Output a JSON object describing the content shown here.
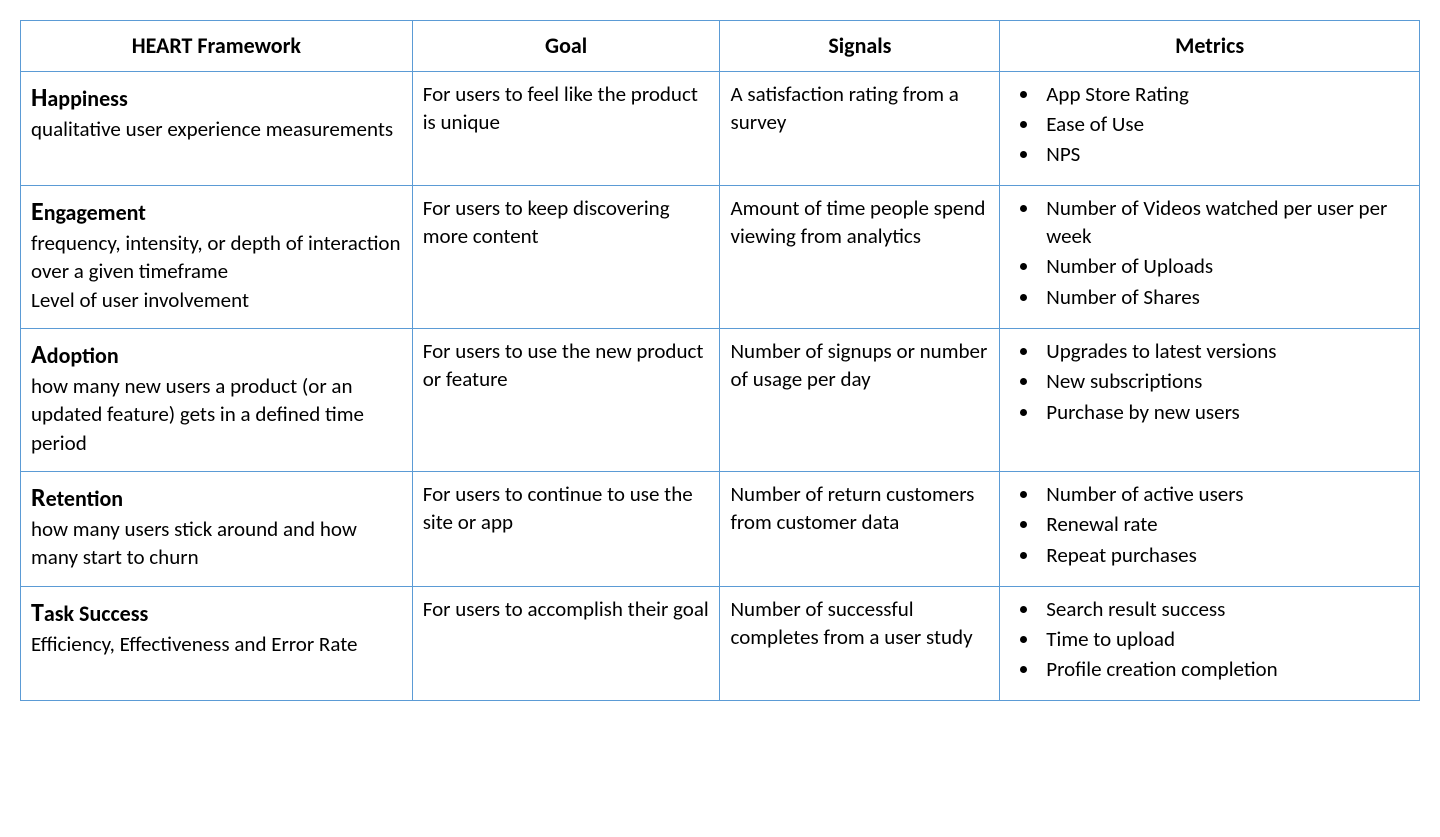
{
  "table": {
    "border_color": "#5b9bd5",
    "background_color": "#ffffff",
    "text_color": "#000000",
    "columns": [
      {
        "label": "HEART Framework",
        "width_pct": 28
      },
      {
        "label": "Goal",
        "width_pct": 22
      },
      {
        "label": "Signals",
        "width_pct": 20
      },
      {
        "label": "Metrics",
        "width_pct": 30
      }
    ],
    "rows": [
      {
        "heart_first": "H",
        "heart_rest": "appiness",
        "heart_desc_lines": [
          "qualitative user experience measurements"
        ],
        "goal": "For users to feel like the product is unique",
        "signals": "A satisfaction rating from a survey",
        "metrics": [
          "App Store Rating",
          "Ease of Use",
          "NPS"
        ]
      },
      {
        "heart_first": "E",
        "heart_rest": "ngagement",
        "heart_desc_lines": [
          "frequency, intensity, or depth of interaction over a given timeframe",
          "Level of user involvement"
        ],
        "goal": "For users to keep discovering more content",
        "signals": "Amount of time people spend viewing from analytics",
        "metrics": [
          "Number of Videos watched per user per week",
          "Number of Uploads",
          "Number of Shares"
        ]
      },
      {
        "heart_first": "A",
        "heart_rest": "doption",
        "heart_desc_lines": [
          "how many new users a product (or an updated feature) gets in a defined time period"
        ],
        "goal": "For users to use the new product or feature",
        "signals": "Number of signups or number of usage per day",
        "metrics": [
          "Upgrades to latest versions",
          "New subscriptions",
          "Purchase by new users"
        ]
      },
      {
        "heart_first": "R",
        "heart_rest": "etention",
        "heart_desc_lines": [
          "how many users stick around and how many start to churn"
        ],
        "goal": "For users to continue to use the site or app",
        "signals": "Number of return customers from customer data",
        "metrics": [
          "Number of active users",
          "Renewal rate",
          "Repeat purchases"
        ]
      },
      {
        "heart_first": "T",
        "heart_rest": "ask Success",
        "heart_desc_lines": [
          "Efficiency, Effectiveness and Error Rate"
        ],
        "goal": "For users to accomplish their goal",
        "signals": "Number of successful completes from a user study",
        "metrics": [
          "Search result success",
          "Time to upload",
          "Profile creation completion"
        ]
      }
    ]
  }
}
